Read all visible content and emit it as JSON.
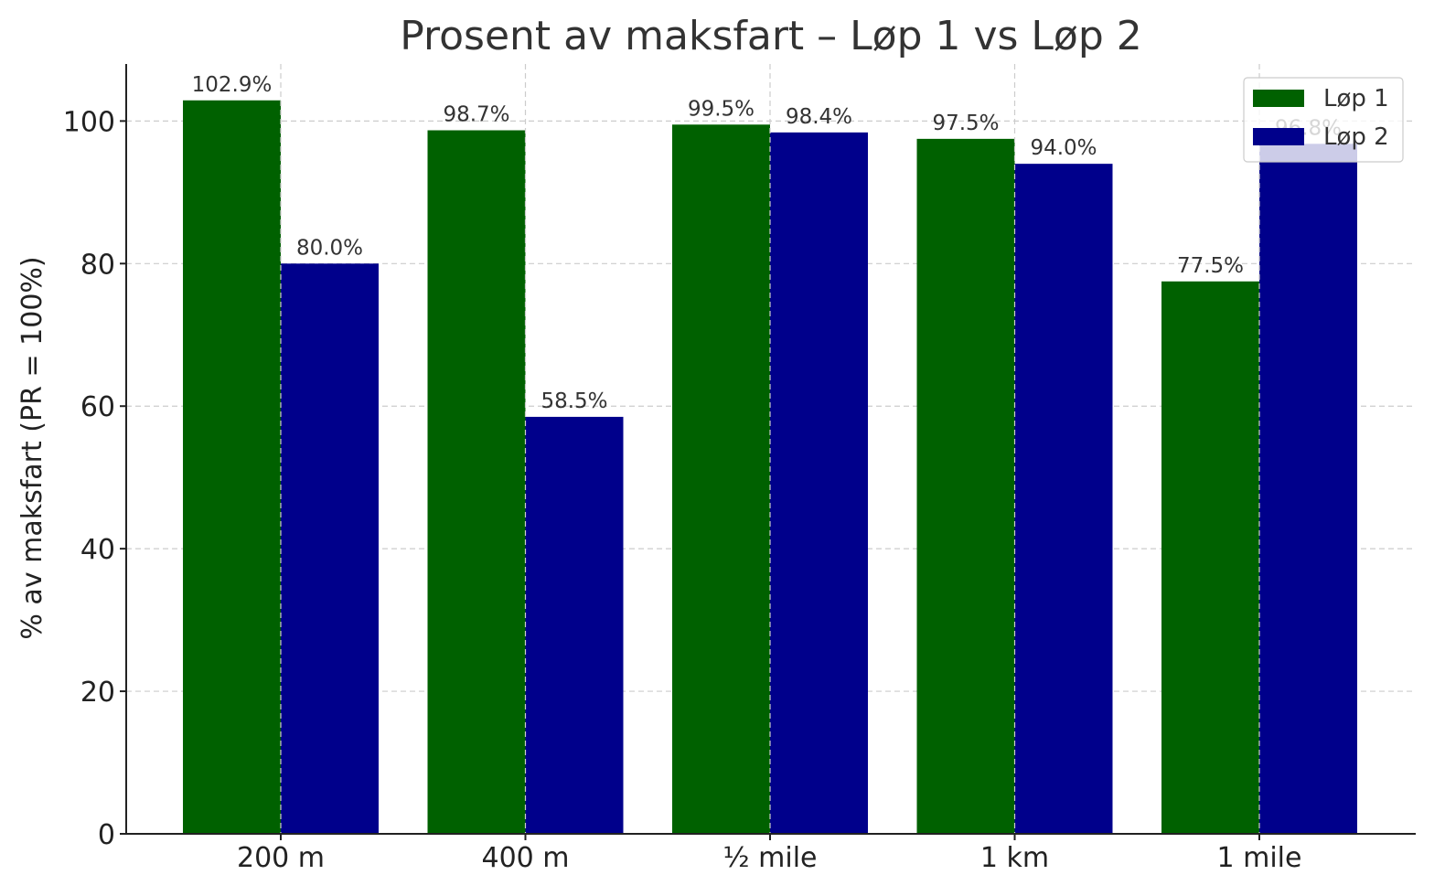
{
  "chart_data": {
    "type": "bar",
    "title": "Prosent av maksfart – Løp 1 vs Løp 2",
    "xlabel": "",
    "ylabel": "% av maksfart (PR = 100%)",
    "categories": [
      "200 m",
      "400 m",
      "½ mile",
      "1 km",
      "1 mile"
    ],
    "series": [
      {
        "name": "Løp 1",
        "color": "#006100",
        "values": [
          102.9,
          98.7,
          99.5,
          97.5,
          77.5
        ],
        "labels": [
          "102.9%",
          "98.7%",
          "99.5%",
          "97.5%",
          "77.5%"
        ]
      },
      {
        "name": "Løp 2",
        "color": "#00008b",
        "values": [
          80.0,
          58.5,
          98.4,
          94.0,
          96.8
        ],
        "labels": [
          "80.0%",
          "58.5%",
          "98.4%",
          "94.0%",
          "96.8%"
        ]
      }
    ],
    "ylim": [
      0,
      108
    ],
    "yticks": [
      0,
      20,
      40,
      60,
      80,
      100
    ],
    "grid": true,
    "legend_position": "top-right"
  }
}
